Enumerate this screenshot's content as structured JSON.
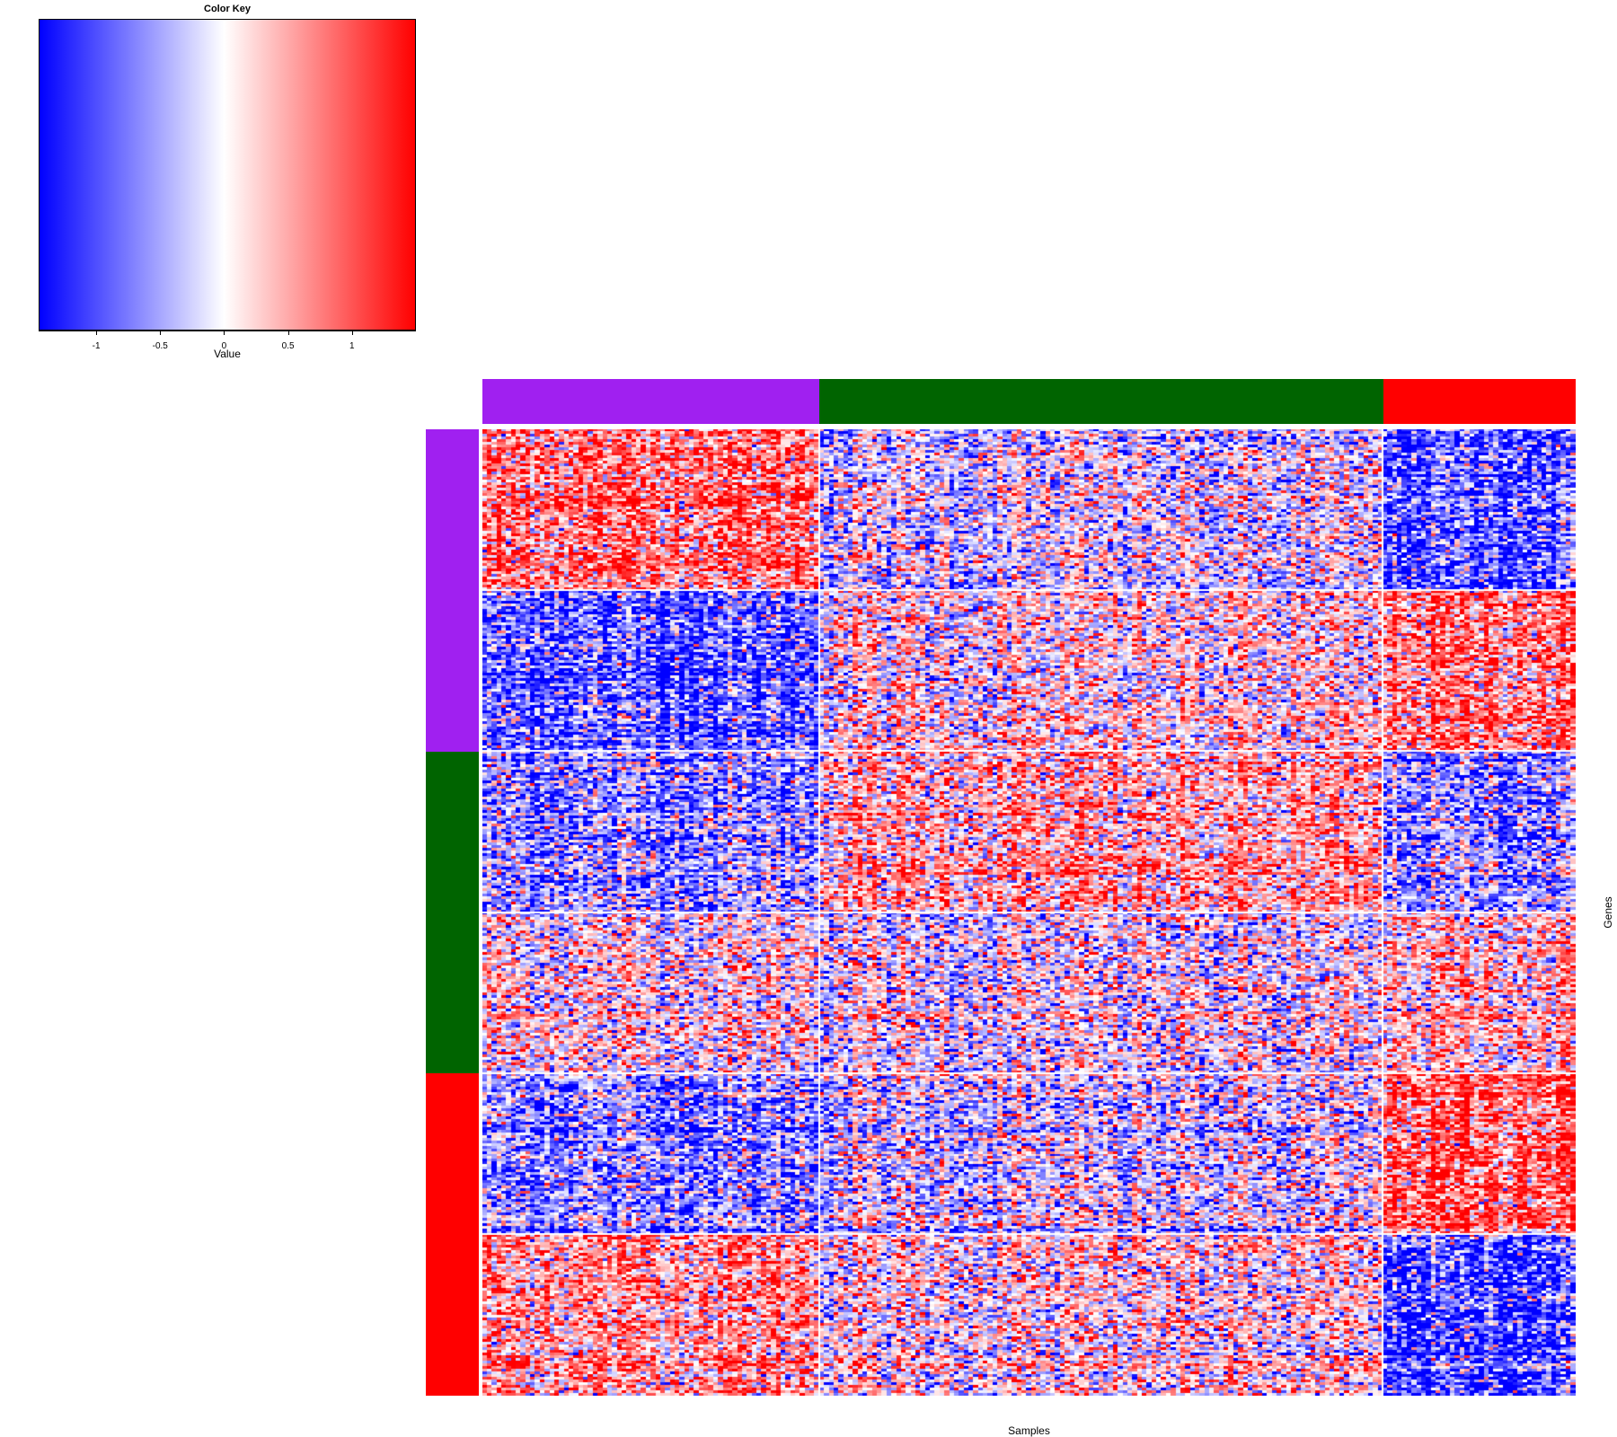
{
  "chart_data": {
    "type": "heatmap",
    "color_key": {
      "title": "Color Key",
      "xlabel": "Value",
      "range": [
        -1.45,
        1.5
      ],
      "ticks": [
        -1,
        -0.5,
        0,
        0.5,
        1
      ],
      "tick_labels": [
        "-1",
        "-0.5",
        "0",
        "0.5",
        "1"
      ],
      "colors": {
        "low": "#0000ff",
        "mid": "#ffffff",
        "high": "#ff0000"
      }
    },
    "xlabel": "Samples",
    "ylabel": "Genes",
    "column_groups": [
      {
        "name": "group-purple",
        "color": "#a020f0",
        "columns": 70
      },
      {
        "name": "group-green",
        "color": "#006400",
        "columns": 117
      },
      {
        "name": "group-red",
        "color": "#ff0000",
        "columns": 40
      }
    ],
    "row_groups": [
      {
        "name": "group-purple",
        "color": "#a020f0",
        "rows": 120
      },
      {
        "name": "group-green",
        "color": "#006400",
        "rows": 120
      },
      {
        "name": "group-red",
        "color": "#ff0000",
        "rows": 120
      }
    ],
    "row_blocks": [
      {
        "rows": 60,
        "mean_by_column_group": [
          0.8,
          -0.2,
          -1.0
        ]
      },
      {
        "rows": 60,
        "mean_by_column_group": [
          -0.9,
          0.1,
          0.8
        ]
      },
      {
        "rows": 60,
        "mean_by_column_group": [
          -0.6,
          0.4,
          -0.6
        ]
      },
      {
        "rows": 60,
        "mean_by_column_group": [
          0.1,
          -0.1,
          0.3
        ]
      },
      {
        "rows": 60,
        "mean_by_column_group": [
          -0.6,
          -0.2,
          1.0
        ]
      },
      {
        "rows": 60,
        "mean_by_column_group": [
          0.6,
          0.1,
          -1.1
        ]
      }
    ]
  }
}
